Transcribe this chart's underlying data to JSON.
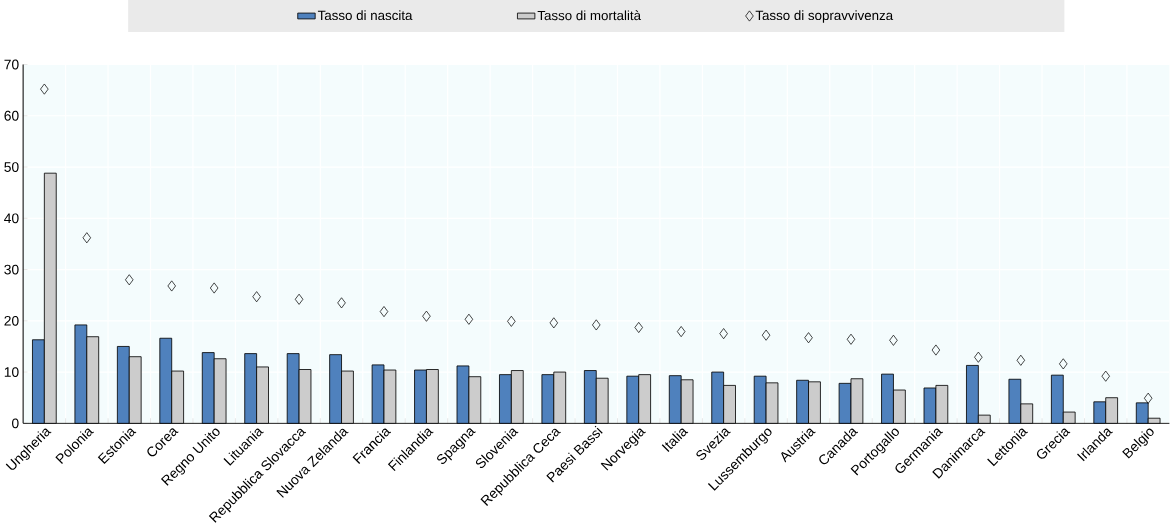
{
  "chart_data": {
    "type": "bar",
    "categories": [
      "Ungheria",
      "Polonia",
      "Estonia",
      "Corea",
      "Regno Unito",
      "Lituania",
      "Repubblica Slovacca",
      "Nuova Zelanda",
      "Francia",
      "Finlandia",
      "Spagna",
      "Slovenia",
      "Repubblica Ceca",
      "Paesi Bassi",
      "Norvegia",
      "Italia",
      "Svezia",
      "Lussemburgo",
      "Austria",
      "Canada",
      "Portogallo",
      "Germania",
      "Danimarca",
      "Lettonia",
      "Grecia",
      "Irlanda",
      "Belgio"
    ],
    "series": [
      {
        "name": "Tasso di nascita",
        "color": "#4f81bd",
        "values": [
          16.3,
          19.2,
          15.0,
          16.6,
          13.8,
          13.6,
          13.6,
          13.4,
          11.4,
          10.4,
          11.2,
          9.5,
          9.5,
          10.3,
          9.2,
          9.3,
          10.0,
          9.2,
          8.4,
          7.8,
          9.6,
          6.9,
          11.3,
          8.6,
          9.4,
          4.2,
          4.0
        ]
      },
      {
        "name": "Tasso di mortalità",
        "color": "#cccccc",
        "values": [
          48.8,
          16.9,
          13.0,
          10.2,
          12.6,
          11.0,
          10.5,
          10.2,
          10.4,
          10.5,
          9.1,
          10.3,
          10.0,
          8.8,
          9.5,
          8.5,
          7.4,
          7.9,
          8.1,
          8.7,
          6.5,
          7.4,
          1.6,
          3.8,
          2.2,
          5.0,
          1.0
        ]
      },
      {
        "name": "Tasso di sopravvivenza",
        "type": "scatter",
        "marker": "diamond",
        "color": "#000000",
        "values": [
          65.2,
          36.2,
          28.0,
          26.8,
          26.4,
          24.7,
          24.2,
          23.5,
          21.8,
          20.9,
          20.3,
          19.9,
          19.6,
          19.2,
          18.7,
          17.9,
          17.5,
          17.2,
          16.7,
          16.4,
          16.2,
          14.3,
          12.9,
          12.3,
          11.6,
          9.2,
          4.9
        ]
      }
    ],
    "ylim": [
      0,
      70
    ],
    "yticks": [
      0,
      10,
      20,
      30,
      40,
      50,
      60,
      70
    ],
    "grid": true,
    "legend": "top"
  }
}
